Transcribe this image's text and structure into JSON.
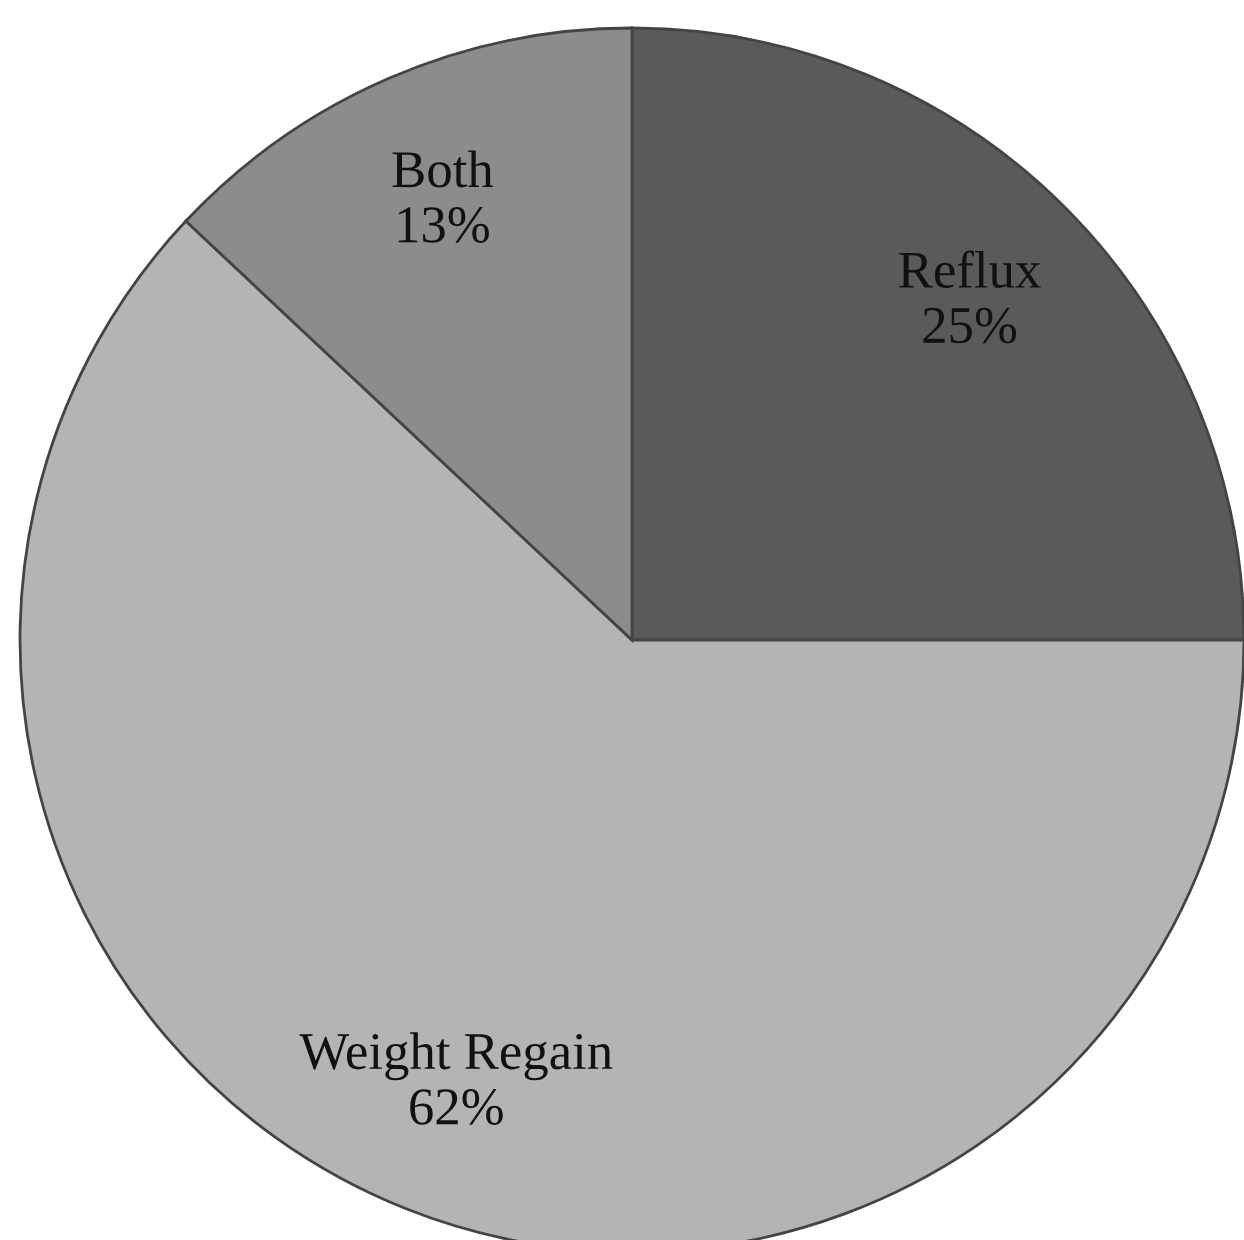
{
  "chart_data": {
    "type": "pie",
    "categories": [
      "Reflux",
      "Weight Regain",
      "Both"
    ],
    "values": [
      25,
      62,
      13
    ],
    "value_labels": [
      "25%",
      "62%",
      "13%"
    ],
    "colors": [
      "#5a5a5a",
      "#b4b4b4",
      "#8c8c8c"
    ]
  }
}
